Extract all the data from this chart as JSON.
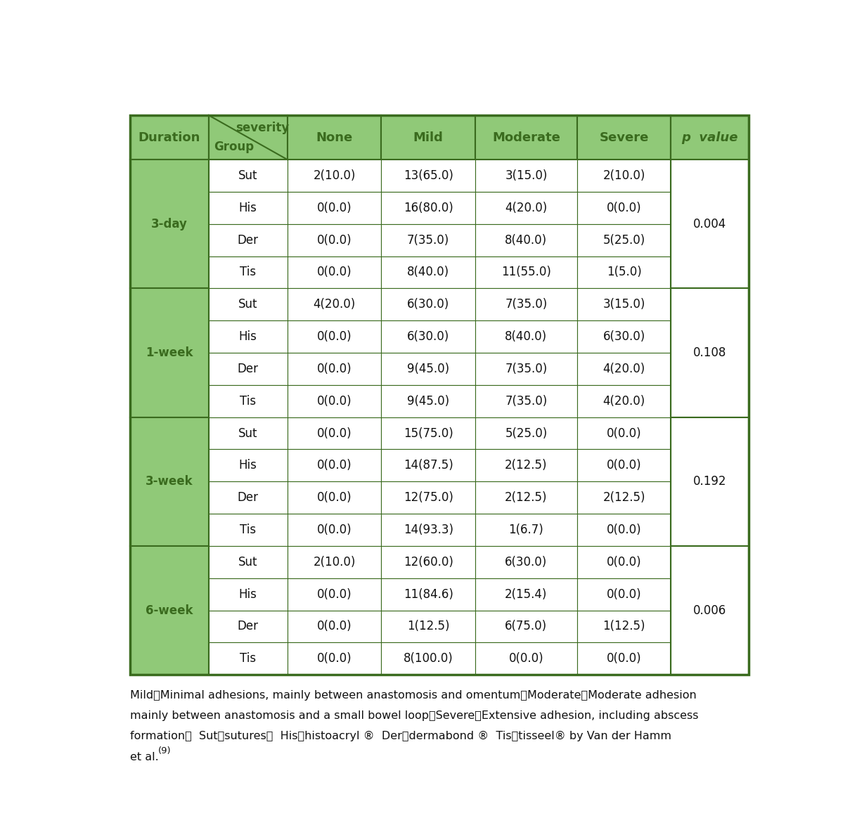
{
  "header_bg": "#90c978",
  "header_text_color": "#3a6b1e",
  "body_bg": "#ffffff",
  "border_color": "#3a6b1e",
  "sections": [
    {
      "duration": "3-day",
      "p_value": "0.004",
      "rows": [
        [
          "Sut",
          "2(10.0)",
          "13(65.0)",
          "3(15.0)",
          "2(10.0)"
        ],
        [
          "His",
          "0(0.0)",
          "16(80.0)",
          "4(20.0)",
          "0(0.0)"
        ],
        [
          "Der",
          "0(0.0)",
          "7(35.0)",
          "8(40.0)",
          "5(25.0)"
        ],
        [
          "Tis",
          "0(0.0)",
          "8(40.0)",
          "11(55.0)",
          "1(5.0)"
        ]
      ]
    },
    {
      "duration": "1-week",
      "p_value": "0.108",
      "rows": [
        [
          "Sut",
          "4(20.0)",
          "6(30.0)",
          "7(35.0)",
          "3(15.0)"
        ],
        [
          "His",
          "0(0.0)",
          "6(30.0)",
          "8(40.0)",
          "6(30.0)"
        ],
        [
          "Der",
          "0(0.0)",
          "9(45.0)",
          "7(35.0)",
          "4(20.0)"
        ],
        [
          "Tis",
          "0(0.0)",
          "9(45.0)",
          "7(35.0)",
          "4(20.0)"
        ]
      ]
    },
    {
      "duration": "3-week",
      "p_value": "0.192",
      "rows": [
        [
          "Sut",
          "0(0.0)",
          "15(75.0)",
          "5(25.0)",
          "0(0.0)"
        ],
        [
          "His",
          "0(0.0)",
          "14(87.5)",
          "2(12.5)",
          "0(0.0)"
        ],
        [
          "Der",
          "0(0.0)",
          "12(75.0)",
          "2(12.5)",
          "2(12.5)"
        ],
        [
          "Tis",
          "0(0.0)",
          "14(93.3)",
          "1(6.7)",
          "0(0.0)"
        ]
      ]
    },
    {
      "duration": "6-week",
      "p_value": "0.006",
      "rows": [
        [
          "Sut",
          "2(10.0)",
          "12(60.0)",
          "6(30.0)",
          "0(0.0)"
        ],
        [
          "His",
          "0(0.0)",
          "11(84.6)",
          "2(15.4)",
          "0(0.0)"
        ],
        [
          "Der",
          "0(0.0)",
          "1(12.5)",
          "6(75.0)",
          "1(12.5)"
        ],
        [
          "Tis",
          "0(0.0)",
          "8(100.0)",
          "0(0.0)",
          "0(0.0)"
        ]
      ]
    }
  ],
  "footnote_lines": [
    "Mild：Minimal adhesions, mainly between anastomosis and omentum；Moderate：Moderate adhesion",
    "mainly between anastomosis and a small bowel loop；Severe：Extensive adhesion, including abscess",
    "formation；  Sut：sutures；  His：histoacryl ®  Der：dermabond ®  Tis：tisseel® by Van der Hamm",
    "et al.⁻⁹⁾"
  ],
  "header_fontsize": 13,
  "body_fontsize": 12,
  "footnote_fontsize": 11.5
}
